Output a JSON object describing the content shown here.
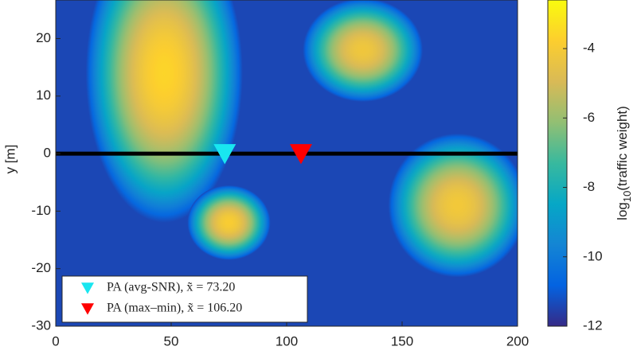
{
  "chart_data": {
    "type": "heatmap",
    "ylabel": "y [m]",
    "xlim": [
      0,
      200
    ],
    "xticks": [
      0,
      50,
      100,
      150,
      200
    ],
    "ylim": [
      -30,
      26.7
    ],
    "yticks": [
      -30,
      -20,
      -10,
      0,
      10,
      20
    ],
    "clim": [
      -12,
      -2.6
    ],
    "cticks": [
      -12,
      -10,
      -8,
      -6,
      -4
    ],
    "colorbar_label": {
      "base": "log",
      "sub": "10",
      "rest": "(traffic weight)"
    },
    "colormap": [
      "#352a87",
      "#0363e1",
      "#1485d4",
      "#06a7c6",
      "#38b99e",
      "#92bf73",
      "#d9ba56",
      "#fcce2e",
      "#f9fb0e"
    ],
    "background": -11.4,
    "hotspots": [
      {
        "x": 47,
        "y": 14,
        "rx": 34,
        "ry": 26,
        "peak": -3.6
      },
      {
        "x": 133,
        "y": 18,
        "rx": 26,
        "ry": 9,
        "peak": -4.2
      },
      {
        "x": 75,
        "y": -12,
        "rx": 18,
        "ry": 6.5,
        "peak": -3.9
      },
      {
        "x": 174,
        "y": -9,
        "rx": 30,
        "ry": 12.5,
        "peak": -4.1
      }
    ],
    "reference_line": {
      "y": 0,
      "color": "#000000"
    },
    "markers": [
      {
        "name": "PA (avg-SNR), x̃ = 73.20",
        "x": 73.2,
        "y": 0,
        "color": "#19e6f0"
      },
      {
        "name": "PA (max–min), x̃ = 106.20",
        "x": 106.2,
        "y": 0,
        "color": "#ff0000"
      }
    ]
  }
}
